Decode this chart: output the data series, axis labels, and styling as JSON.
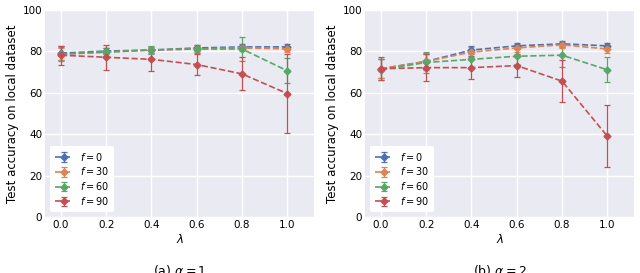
{
  "lambda_vals": [
    0.0,
    0.2,
    0.4,
    0.6,
    0.8,
    1.0
  ],
  "subplot_captions": [
    "(a) $\\alpha = 1$",
    "(b) $\\alpha = 2$"
  ],
  "ylabel": "Test accuracy on local dataset",
  "xlabel": "$\\lambda$",
  "ylim": [
    0,
    100
  ],
  "yticks": [
    0,
    20,
    40,
    60,
    80,
    100
  ],
  "series_labels": [
    "$f = 0$",
    "$f = 30$",
    "$f = 60$",
    "$f = 90$"
  ],
  "colors": [
    "#4c72b0",
    "#dd8452",
    "#55a868",
    "#c44e52"
  ],
  "ax1_means": [
    [
      79.0,
      80.0,
      80.5,
      81.5,
      82.0,
      82.0
    ],
    [
      78.5,
      79.5,
      80.5,
      81.0,
      81.5,
      81.0
    ],
    [
      78.5,
      79.5,
      80.5,
      81.0,
      81.0,
      70.5
    ],
    [
      78.0,
      77.0,
      76.0,
      73.5,
      69.0,
      59.5
    ]
  ],
  "ax1_errs": [
    [
      3.5,
      1.5,
      1.5,
      1.5,
      1.5,
      1.5
    ],
    [
      3.0,
      2.0,
      1.5,
      1.5,
      1.5,
      1.5
    ],
    [
      3.5,
      2.0,
      2.0,
      2.0,
      6.0,
      6.0
    ],
    [
      4.5,
      6.0,
      5.5,
      5.0,
      8.0,
      19.0
    ]
  ],
  "ax2_means": [
    [
      71.5,
      75.0,
      80.5,
      82.5,
      83.5,
      82.5
    ],
    [
      71.5,
      75.0,
      79.5,
      81.5,
      83.0,
      81.0
    ],
    [
      71.0,
      74.5,
      76.0,
      77.5,
      78.0,
      71.0
    ],
    [
      71.5,
      72.0,
      72.0,
      73.0,
      65.5,
      39.0
    ]
  ],
  "ax2_errs": [
    [
      4.5,
      3.5,
      2.0,
      1.5,
      1.5,
      1.5
    ],
    [
      4.5,
      4.0,
      2.5,
      2.0,
      1.5,
      2.0
    ],
    [
      5.0,
      5.0,
      4.0,
      3.5,
      5.5,
      6.0
    ],
    [
      5.5,
      6.5,
      5.5,
      5.5,
      10.0,
      15.0
    ]
  ],
  "bg_color": "#eaeaf2",
  "grid_color": "white",
  "legend_fontsize": 7,
  "tick_fontsize": 7.5,
  "label_fontsize": 8.5,
  "caption_fontsize": 9
}
